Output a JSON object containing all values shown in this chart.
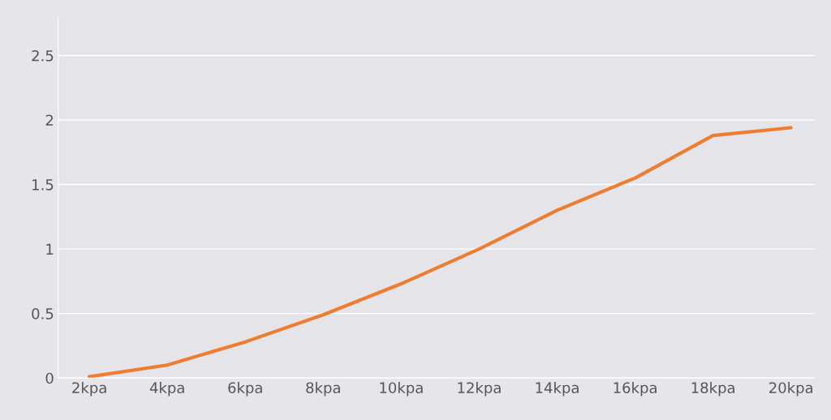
{
  "chart_data": {
    "type": "line",
    "categories": [
      "2kpa",
      "4kpa",
      "6kpa",
      "8kpa",
      "10kpa",
      "12kpa",
      "14kpa",
      "16kpa",
      "18kpa",
      "20kpa"
    ],
    "series": [
      {
        "color": "#ed7d31",
        "values": [
          0.01,
          0.1,
          0.28,
          0.49,
          0.73,
          1.0,
          1.3,
          1.55,
          1.88,
          1.94
        ]
      }
    ],
    "ylim": [
      0,
      2.8
    ],
    "yticks": [
      0,
      0.5,
      1,
      1.5,
      2,
      2.5
    ],
    "grid": "y",
    "marker": "none",
    "line_style": "solid"
  }
}
